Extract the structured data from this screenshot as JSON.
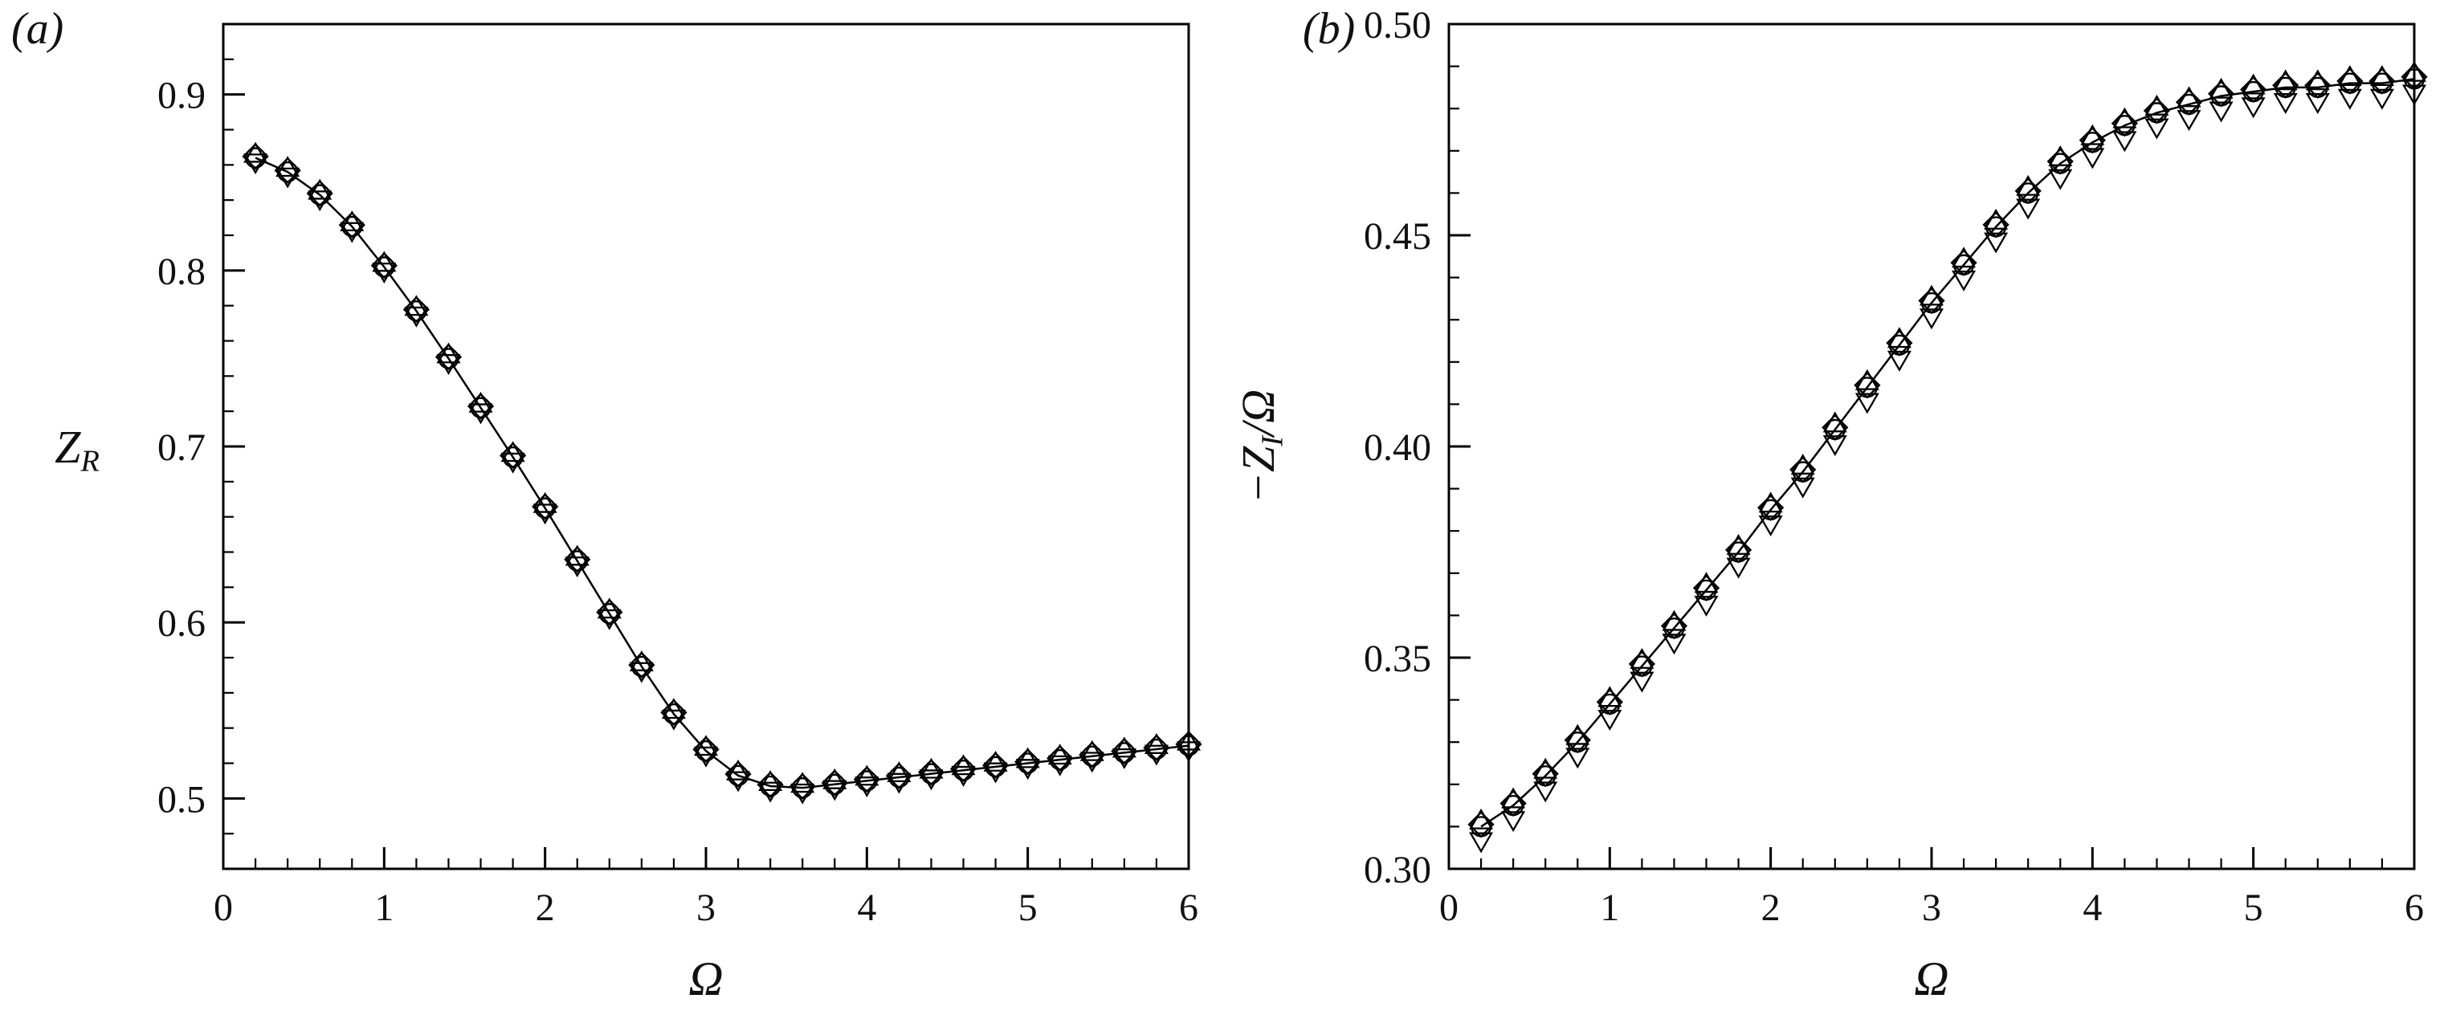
{
  "figure": {
    "background": "#ffffff",
    "ink_color": "#000000"
  },
  "chart_data": [
    {
      "type": "line",
      "panel_label": "(a)",
      "title": "",
      "xlabel": "Ω",
      "ylabel": "Z_R",
      "xlabel_segments": [
        {
          "text": "Ω",
          "italic": true
        }
      ],
      "ylabel_segments": [
        {
          "text": "Z",
          "italic": true
        },
        {
          "text": "R",
          "italic": true,
          "sub": true
        }
      ],
      "ylabel_rotated": false,
      "xlim": [
        0,
        6
      ],
      "ylim": [
        0.46,
        0.94
      ],
      "xticks": [
        0,
        1,
        2,
        3,
        4,
        5,
        6
      ],
      "xtick_labels": [
        "0",
        "1",
        "2",
        "3",
        "4",
        "5",
        "6"
      ],
      "yticks": [
        0.5,
        0.6,
        0.7,
        0.8,
        0.9
      ],
      "ytick_labels": [
        "0.5",
        "0.6",
        "0.7",
        "0.8",
        "0.9"
      ],
      "x_minor_step": 0.2,
      "y_minor_step": 0.02,
      "grid": false,
      "legend": "none",
      "line_color": "#000000",
      "x": [
        0.2,
        0.4,
        0.6,
        0.8,
        1.0,
        1.2,
        1.4,
        1.6,
        1.8,
        2.0,
        2.2,
        2.4,
        2.6,
        2.8,
        3.0,
        3.2,
        3.4,
        3.6,
        3.8,
        4.0,
        4.2,
        4.4,
        4.6,
        4.8,
        5.0,
        5.2,
        5.4,
        5.6,
        5.8,
        6.0
      ],
      "values": [
        0.864,
        0.856,
        0.843,
        0.825,
        0.802,
        0.777,
        0.75,
        0.722,
        0.694,
        0.665,
        0.635,
        0.605,
        0.575,
        0.548,
        0.527,
        0.513,
        0.507,
        0.506,
        0.508,
        0.51,
        0.512,
        0.514,
        0.516,
        0.518,
        0.52,
        0.522,
        0.524,
        0.526,
        0.528,
        0.53
      ],
      "series": [
        {
          "name": "circle-markers",
          "marker": "circle",
          "y_offset": 0
        },
        {
          "name": "triangle-up-markers",
          "marker": "triangle-up",
          "y_offset": 0.0012
        },
        {
          "name": "triangle-down-markers",
          "marker": "triangle-down",
          "y_offset": -0.0015
        },
        {
          "name": "diamond-markers",
          "marker": "diamond",
          "y_offset": 0.0008
        }
      ]
    },
    {
      "type": "line",
      "panel_label": "(b)",
      "title": "",
      "xlabel": "Ω",
      "ylabel": "−Z_I/Ω",
      "xlabel_segments": [
        {
          "text": "Ω",
          "italic": true
        }
      ],
      "ylabel_segments": [
        {
          "text": "−Z",
          "italic": true
        },
        {
          "text": "I",
          "italic": true,
          "sub": true
        },
        {
          "text": "/",
          "italic": true
        },
        {
          "text": "Ω",
          "italic": true
        }
      ],
      "ylabel_rotated": true,
      "xlim": [
        0,
        6
      ],
      "ylim": [
        0.3,
        0.5
      ],
      "xticks": [
        0,
        1,
        2,
        3,
        4,
        5,
        6
      ],
      "xtick_labels": [
        "0",
        "1",
        "2",
        "3",
        "4",
        "5",
        "6"
      ],
      "yticks": [
        0.3,
        0.35,
        0.4,
        0.45,
        0.5
      ],
      "ytick_labels": [
        "0.30",
        "0.35",
        "0.40",
        "0.45",
        "0.50"
      ],
      "x_minor_step": 0.2,
      "y_minor_step": 0.01,
      "grid": false,
      "legend": "none",
      "line_color": "#000000",
      "x": [
        0.2,
        0.4,
        0.6,
        0.8,
        1.0,
        1.2,
        1.4,
        1.6,
        1.8,
        2.0,
        2.2,
        2.4,
        2.6,
        2.8,
        3.0,
        3.2,
        3.4,
        3.6,
        3.8,
        4.0,
        4.2,
        4.4,
        4.6,
        4.8,
        5.0,
        5.2,
        5.4,
        5.6,
        5.8,
        6.0
      ],
      "values": [
        0.31,
        0.315,
        0.322,
        0.33,
        0.339,
        0.348,
        0.357,
        0.366,
        0.375,
        0.385,
        0.394,
        0.404,
        0.414,
        0.424,
        0.434,
        0.443,
        0.452,
        0.46,
        0.467,
        0.472,
        0.476,
        0.479,
        0.481,
        0.483,
        0.484,
        0.485,
        0.485,
        0.486,
        0.486,
        0.487
      ],
      "series": [
        {
          "name": "circle-markers",
          "marker": "circle",
          "y_offset": 0
        },
        {
          "name": "triangle-up-markers",
          "marker": "triangle-up",
          "y_offset": 0.001
        },
        {
          "name": "triangle-down-markers",
          "marker": "triangle-down",
          "y_offset": -0.003
        },
        {
          "name": "diamond-markers",
          "marker": "diamond",
          "y_offset": 0.0005
        }
      ]
    }
  ]
}
